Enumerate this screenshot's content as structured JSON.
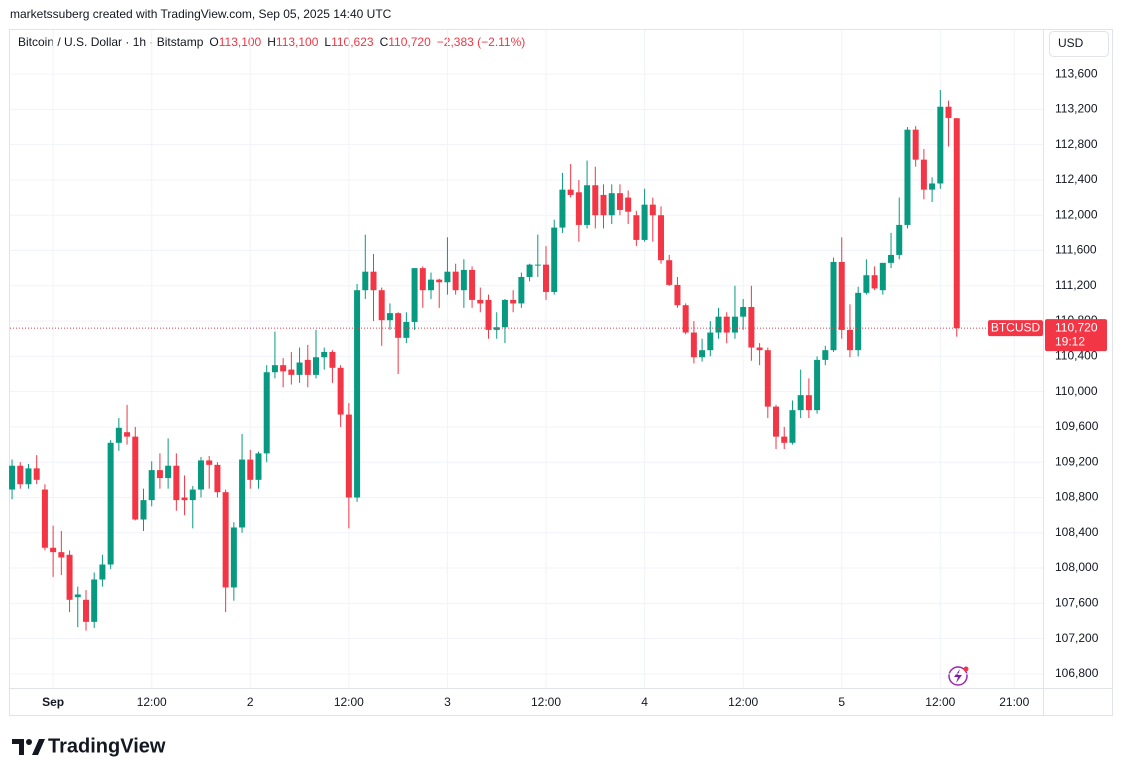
{
  "header": {
    "credit": "marketssuberg created with TradingView.com, Sep 05, 2025 14:40 UTC"
  },
  "legend": {
    "symbol": "Bitcoin / U.S. Dollar · 1h · Bitstamp",
    "ohlc": [
      {
        "key": "O",
        "value": "113,100"
      },
      {
        "key": "H",
        "value": "113,100"
      },
      {
        "key": "L",
        "value": "110,623"
      },
      {
        "key": "C",
        "value": "110,720"
      }
    ],
    "change": "−2,383 (−2.11%)"
  },
  "currency": "USD",
  "price_tag": {
    "symbol": "BTCUSD",
    "price": "110,720",
    "countdown": "19:12"
  },
  "logo": "TradingView",
  "chart_data": {
    "type": "candlestick",
    "up_color": "#089981",
    "down_color": "#f23645",
    "grid": true,
    "x": [
      -5,
      -4,
      -3,
      -2,
      -1,
      0,
      1,
      2,
      3,
      4,
      5,
      6,
      7,
      8,
      9,
      10,
      11,
      12,
      13,
      14,
      15,
      16,
      17,
      18,
      19,
      20,
      21,
      22,
      23,
      24,
      25,
      26,
      27,
      28,
      29,
      30,
      31,
      32,
      33,
      34,
      35,
      36,
      37,
      38,
      39,
      40,
      41,
      42,
      43,
      44,
      45,
      46,
      47,
      48,
      49,
      50,
      51,
      52,
      53,
      54,
      55,
      56,
      57,
      58,
      59,
      60,
      61,
      62,
      63,
      64,
      65,
      66,
      67,
      68,
      69,
      70,
      71,
      72,
      73,
      74,
      75,
      76,
      77,
      78,
      79,
      80,
      81,
      82,
      83,
      84,
      85,
      86,
      87,
      88,
      89,
      90,
      91,
      92,
      93,
      94,
      95,
      96,
      97,
      98,
      99,
      100,
      101,
      102,
      103,
      104,
      105,
      106,
      107,
      108,
      109,
      110
    ],
    "open": [
      108890,
      109160,
      108950,
      109130,
      108890,
      108230,
      108180,
      108150,
      107670,
      107640,
      107390,
      107870,
      108040,
      109420,
      109540,
      109490,
      108550,
      108770,
      109110,
      109020,
      109160,
      108800,
      108770,
      108890,
      109220,
      109170,
      108860,
      107780,
      108460,
      109230,
      109000,
      109300,
      110220,
      110300,
      110250,
      110190,
      110360,
      110190,
      110390,
      110450,
      110270,
      109740,
      108800,
      111150,
      111360,
      111150,
      110810,
      110890,
      110610,
      110790,
      111400,
      111150,
      111270,
      111240,
      111360,
      111150,
      111380,
      111040,
      111040,
      110700,
      110730,
      111040,
      111000,
      111300,
      111440,
      111440,
      111130,
      111860,
      112290,
      112260,
      111890,
      112340,
      112230,
      112000,
      112250,
      112200,
      112000,
      111720,
      112120,
      112000,
      111490,
      111210,
      110980,
      110670,
      110390,
      110470,
      110670,
      110850,
      110670,
      110850,
      110960,
      110500,
      110470,
      109830,
      109490,
      109420,
      109790,
      109960,
      109790,
      110360,
      110470,
      111470,
      110700,
      110470,
      111120,
      111320,
      111150,
      111460,
      111550,
      111890,
      112970,
      112630,
      112290,
      112360,
      113230,
      113100
    ],
    "high": [
      109230,
      109200,
      109180,
      109280,
      108950,
      108480,
      108420,
      108200,
      107790,
      107750,
      107950,
      108150,
      109450,
      109700,
      109850,
      109600,
      108900,
      109210,
      109300,
      109470,
      109300,
      109050,
      108930,
      109260,
      109270,
      109200,
      108890,
      108520,
      109520,
      109340,
      109320,
      110300,
      110680,
      110380,
      110450,
      110500,
      110530,
      110700,
      110500,
      110470,
      110300,
      109870,
      111220,
      111780,
      111560,
      111180,
      111000,
      110900,
      110900,
      111400,
      111420,
      111350,
      111280,
      111750,
      111450,
      111500,
      111420,
      111180,
      111100,
      110900,
      111050,
      111150,
      111350,
      111450,
      111780,
      111650,
      111950,
      112480,
      112580,
      112400,
      112620,
      112550,
      112350,
      112350,
      112350,
      112280,
      112050,
      112300,
      112200,
      112100,
      111550,
      111300,
      111000,
      110800,
      110600,
      110800,
      110950,
      110900,
      111200,
      111050,
      111200,
      110550,
      110500,
      109850,
      109600,
      109900,
      110250,
      110150,
      110400,
      110520,
      111520,
      111750,
      110990,
      111190,
      111500,
      111420,
      111460,
      111800,
      112200,
      113000,
      113010,
      112750,
      112430,
      113420,
      113300,
      113100
    ],
    "low": [
      108780,
      108900,
      108900,
      108950,
      108200,
      107900,
      107920,
      107500,
      107330,
      107290,
      107320,
      107790,
      107990,
      109330,
      109400,
      108540,
      108420,
      108700,
      108900,
      108900,
      108650,
      108600,
      108450,
      108800,
      108900,
      108800,
      107500,
      107630,
      108400,
      108900,
      108900,
      109200,
      110150,
      110050,
      110080,
      110100,
      110050,
      110150,
      110250,
      110100,
      109600,
      108450,
      108750,
      111050,
      110800,
      110520,
      110700,
      110200,
      110550,
      110700,
      110950,
      111050,
      110950,
      111100,
      111100,
      110950,
      110950,
      110900,
      110600,
      110600,
      110550,
      110900,
      110950,
      111250,
      111300,
      111040,
      111100,
      111800,
      112200,
      111700,
      111850,
      111850,
      111850,
      111900,
      112000,
      111900,
      111650,
      111700,
      111700,
      111450,
      111200,
      110950,
      110650,
      110320,
      110340,
      110400,
      110600,
      110550,
      110600,
      110700,
      110350,
      110300,
      109700,
      109350,
      109350,
      109400,
      109700,
      109700,
      109750,
      110300,
      110450,
      110600,
      110390,
      110400,
      111100,
      111150,
      111100,
      111400,
      111500,
      111850,
      112550,
      112180,
      112150,
      112300,
      112780,
      110623
    ],
    "close": [
      109160,
      108950,
      109130,
      109000,
      108230,
      108180,
      108120,
      107640,
      107700,
      107390,
      107870,
      108040,
      109420,
      109590,
      109490,
      108550,
      108770,
      109110,
      109020,
      109160,
      108770,
      108770,
      108890,
      109220,
      109170,
      108860,
      107780,
      108460,
      109230,
      109000,
      109300,
      110220,
      110300,
      110230,
      110190,
      110330,
      110190,
      110390,
      110450,
      110270,
      109740,
      108800,
      111150,
      111360,
      111150,
      110810,
      110890,
      110610,
      110790,
      111400,
      111150,
      111270,
      111240,
      111360,
      111150,
      111380,
      111040,
      111000,
      110700,
      110730,
      111040,
      111000,
      111300,
      111440,
      111440,
      111130,
      111860,
      112290,
      112230,
      111890,
      112340,
      112000,
      112000,
      112250,
      112060,
      112040,
      111720,
      112120,
      112000,
      111490,
      111210,
      110980,
      110670,
      110390,
      110470,
      110670,
      110850,
      110670,
      110850,
      110960,
      110500,
      110470,
      109830,
      109490,
      109420,
      109790,
      109960,
      109790,
      110360,
      110470,
      111470,
      110700,
      110470,
      111120,
      111320,
      111170,
      111460,
      111550,
      111890,
      112970,
      112630,
      112290,
      112360,
      113230,
      113103,
      110720
    ],
    "xlim": [
      -5.25,
      120.5
    ],
    "xticks": [
      {
        "value": 0,
        "label": "Sep"
      },
      {
        "value": 12,
        "label": "12:00"
      },
      {
        "value": 24,
        "label": "2"
      },
      {
        "value": 36,
        "label": "12:00"
      },
      {
        "value": 48,
        "label": "3"
      },
      {
        "value": 60,
        "label": "12:00"
      },
      {
        "value": 72,
        "label": "4"
      },
      {
        "value": 84,
        "label": "12:00"
      },
      {
        "value": 96,
        "label": "5"
      },
      {
        "value": 108,
        "label": "12:00"
      },
      {
        "value": 117,
        "label": "21:00"
      }
    ],
    "ylim": [
      106640,
      114100
    ],
    "yticks": [
      {
        "value": 106800,
        "label": "106,800"
      },
      {
        "value": 107200,
        "label": "107,200"
      },
      {
        "value": 107600,
        "label": "107,600"
      },
      {
        "value": 108000,
        "label": "108,000"
      },
      {
        "value": 108400,
        "label": "108,400"
      },
      {
        "value": 108800,
        "label": "108,800"
      },
      {
        "value": 109200,
        "label": "109,200"
      },
      {
        "value": 109600,
        "label": "109,600"
      },
      {
        "value": 110000,
        "label": "110,000"
      },
      {
        "value": 110400,
        "label": "110,400"
      },
      {
        "value": 110800,
        "label": "110,800"
      },
      {
        "value": 111200,
        "label": "111,200"
      },
      {
        "value": 111600,
        "label": "111,600"
      },
      {
        "value": 112000,
        "label": "112,000"
      },
      {
        "value": 112400,
        "label": "112,400"
      },
      {
        "value": 112800,
        "label": "112,800"
      },
      {
        "value": 113200,
        "label": "113,200"
      },
      {
        "value": 113600,
        "label": "113,600"
      }
    ]
  }
}
